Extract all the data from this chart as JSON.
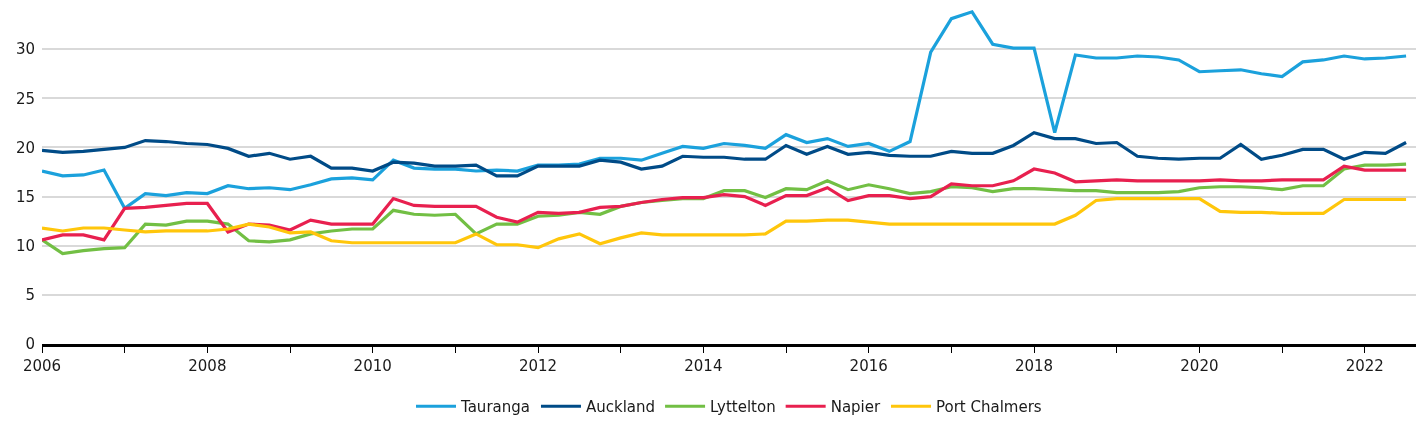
{
  "chart_data": {
    "type": "line",
    "x": [
      2006,
      2006.25,
      2006.5,
      2006.75,
      2007,
      2007.25,
      2007.5,
      2007.75,
      2008,
      2008.25,
      2008.5,
      2008.75,
      2009,
      2009.25,
      2009.5,
      2009.75,
      2010,
      2010.25,
      2010.5,
      2010.75,
      2011,
      2011.25,
      2011.5,
      2011.75,
      2012,
      2012.25,
      2012.5,
      2012.75,
      2013,
      2013.25,
      2013.5,
      2013.75,
      2014,
      2014.25,
      2014.5,
      2014.75,
      2015,
      2015.25,
      2015.5,
      2015.75,
      2016,
      2016.25,
      2016.5,
      2016.75,
      2017,
      2017.25,
      2017.5,
      2017.75,
      2018,
      2018.25,
      2018.5,
      2018.75,
      2019,
      2019.25,
      2019.5,
      2019.75,
      2020,
      2020.25,
      2020.5,
      2020.75,
      2021,
      2021.25,
      2021.5,
      2021.75,
      2022,
      2022.25,
      2022.5
    ],
    "series": [
      {
        "name": "Tauranga",
        "color": "#1ba1dc",
        "values": [
          17.6,
          17.1,
          17.2,
          17.7,
          13.8,
          15.3,
          15.1,
          15.4,
          15.3,
          16.1,
          15.8,
          15.9,
          15.7,
          16.2,
          16.8,
          16.9,
          16.7,
          18.7,
          17.9,
          17.8,
          17.8,
          17.6,
          17.7,
          17.6,
          18.2,
          18.2,
          18.3,
          18.9,
          18.9,
          18.7,
          19.4,
          20.1,
          19.9,
          20.4,
          20.2,
          19.9,
          21.3,
          20.5,
          20.9,
          20.1,
          20.4,
          19.6,
          20.6,
          29.7,
          33.1,
          33.8,
          30.5,
          30.1,
          30.1,
          21.5,
          29.4,
          29.1,
          29.1,
          29.3,
          29.2,
          28.9,
          27.7,
          27.8,
          27.9,
          27.5,
          27.2,
          28.7,
          28.9,
          29.3,
          29.0,
          29.1,
          29.3
        ]
      },
      {
        "name": "Auckland",
        "color": "#004b87",
        "values": [
          19.7,
          19.5,
          19.6,
          19.8,
          20.0,
          20.7,
          20.6,
          20.4,
          20.3,
          19.9,
          19.1,
          19.4,
          18.8,
          19.1,
          17.9,
          17.9,
          17.6,
          18.5,
          18.4,
          18.1,
          18.1,
          18.2,
          17.1,
          17.1,
          18.1,
          18.1,
          18.1,
          18.7,
          18.5,
          17.8,
          18.1,
          19.1,
          19.0,
          19.0,
          18.8,
          18.8,
          20.2,
          19.3,
          20.1,
          19.3,
          19.5,
          19.2,
          19.1,
          19.1,
          19.6,
          19.4,
          19.4,
          20.2,
          21.5,
          20.9,
          20.9,
          20.4,
          20.5,
          19.1,
          18.9,
          18.8,
          18.9,
          18.9,
          20.3,
          18.8,
          19.2,
          19.8,
          19.8,
          18.8,
          19.5,
          19.4,
          20.5
        ]
      },
      {
        "name": "Lyttelton",
        "color": "#72bf44",
        "values": [
          10.6,
          9.2,
          9.5,
          9.7,
          9.8,
          12.2,
          12.1,
          12.5,
          12.5,
          12.2,
          10.5,
          10.4,
          10.6,
          11.2,
          11.5,
          11.7,
          11.7,
          13.6,
          13.2,
          13.1,
          13.2,
          11.2,
          12.2,
          12.2,
          13.0,
          13.1,
          13.4,
          13.2,
          14.0,
          14.4,
          14.6,
          14.8,
          14.8,
          15.6,
          15.6,
          14.9,
          15.8,
          15.7,
          16.6,
          15.7,
          16.2,
          15.8,
          15.3,
          15.5,
          16.0,
          15.9,
          15.5,
          15.8,
          15.8,
          15.7,
          15.6,
          15.6,
          15.4,
          15.4,
          15.4,
          15.5,
          15.9,
          16.0,
          16.0,
          15.9,
          15.7,
          16.1,
          16.1,
          17.8,
          18.2,
          18.2,
          18.3
        ]
      },
      {
        "name": "Napier",
        "color": "#e8204f",
        "values": [
          10.6,
          11.1,
          11.1,
          10.6,
          13.8,
          13.9,
          14.1,
          14.3,
          14.3,
          11.4,
          12.2,
          12.1,
          11.6,
          12.6,
          12.2,
          12.2,
          12.2,
          14.8,
          14.1,
          14.0,
          14.0,
          14.0,
          12.9,
          12.4,
          13.4,
          13.3,
          13.4,
          13.9,
          14.0,
          14.4,
          14.7,
          14.9,
          14.9,
          15.2,
          15.0,
          14.1,
          15.1,
          15.1,
          15.9,
          14.6,
          15.1,
          15.1,
          14.8,
          15.0,
          16.3,
          16.1,
          16.1,
          16.6,
          17.8,
          17.4,
          16.5,
          16.6,
          16.7,
          16.6,
          16.6,
          16.6,
          16.6,
          16.7,
          16.6,
          16.6,
          16.7,
          16.7,
          16.7,
          18.1,
          17.7,
          17.7,
          17.7
        ]
      },
      {
        "name": "Port Chalmers",
        "color": "#ffc60b",
        "values": [
          11.8,
          11.5,
          11.8,
          11.8,
          11.6,
          11.4,
          11.5,
          11.5,
          11.5,
          11.7,
          12.2,
          11.9,
          11.3,
          11.4,
          10.5,
          10.3,
          10.3,
          10.3,
          10.3,
          10.3,
          10.3,
          11.2,
          10.1,
          10.1,
          9.8,
          10.7,
          11.2,
          10.2,
          10.8,
          11.3,
          11.1,
          11.1,
          11.1,
          11.1,
          11.1,
          11.2,
          12.5,
          12.5,
          12.6,
          12.6,
          12.4,
          12.2,
          12.2,
          12.2,
          12.2,
          12.2,
          12.2,
          12.2,
          12.2,
          12.2,
          13.1,
          14.6,
          14.8,
          14.8,
          14.8,
          14.8,
          14.8,
          13.5,
          13.4,
          13.4,
          13.3,
          13.3,
          13.3,
          14.7,
          14.7,
          14.7,
          14.7
        ]
      }
    ],
    "xlim": [
      2006,
      2022.62
    ],
    "xticks": [
      2006,
      {
        "value": 2007,
        "label": null
      },
      2008,
      {
        "value": 2009,
        "label": null
      },
      2010,
      {
        "value": 2011,
        "label": null
      },
      2012,
      {
        "value": 2013,
        "label": null
      },
      2014,
      {
        "value": 2015,
        "label": null
      },
      2016,
      {
        "value": 2017,
        "label": null
      },
      2018,
      {
        "value": 2019,
        "label": null
      },
      2020,
      {
        "value": 2021,
        "label": null
      },
      2022
    ],
    "ylim": [
      0,
      35
    ],
    "yticks": [
      0,
      5,
      10,
      15,
      20,
      25,
      30
    ],
    "grid": "y",
    "legend": "bottom",
    "line_style": "solid"
  }
}
